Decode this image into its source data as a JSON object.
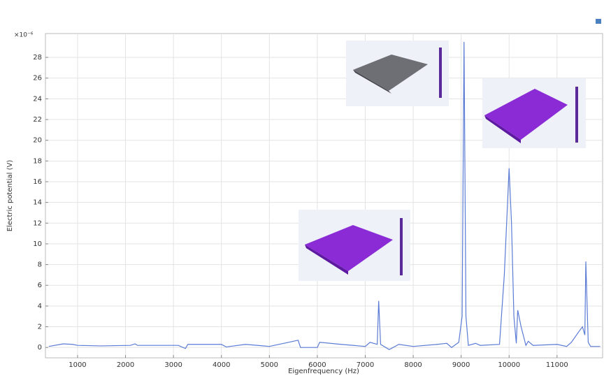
{
  "chart_data": {
    "type": "line",
    "y_multiplier": "×10⁻⁶",
    "xlabel": "Eigenfrequency (Hz)",
    "ylabel": "Electric potential (V)",
    "xlim": [
      330,
      11950
    ],
    "ylim": [
      -1,
      30.3
    ],
    "xticks": [
      1000,
      2000,
      3000,
      4000,
      5000,
      6000,
      7000,
      8000,
      9000,
      10000,
      11000
    ],
    "yticks": [
      0,
      2,
      4,
      6,
      8,
      10,
      12,
      14,
      16,
      18,
      20,
      22,
      24,
      26,
      28
    ],
    "grid": true,
    "series": [
      {
        "color": "#5b7bd5",
        "x": [
          400,
          700,
          900,
          1000,
          1500,
          2100,
          2200,
          2250,
          3100,
          3250,
          3300,
          4000,
          4100,
          4500,
          5000,
          5500,
          5600,
          5650,
          6000,
          6050,
          6500,
          7000,
          7100,
          7250,
          7280,
          7320,
          7500,
          7700,
          8000,
          8500,
          8700,
          8800,
          8950,
          9020,
          9060,
          9100,
          9150,
          9300,
          9400,
          9800,
          9900,
          10000,
          10050,
          10100,
          10150,
          10180,
          10250,
          10350,
          10400,
          10500,
          11000,
          11200,
          11300,
          11450,
          11530,
          11580,
          11600,
          11650,
          11700,
          11900
        ],
        "values": [
          0.1,
          0.35,
          0.3,
          0.2,
          0.15,
          0.2,
          0.35,
          0.2,
          0.2,
          -0.1,
          0.3,
          0.3,
          0.05,
          0.3,
          0.1,
          0.6,
          0.7,
          0,
          0,
          0.5,
          0.3,
          0.1,
          0.5,
          0.3,
          4.5,
          0.3,
          -0.2,
          0.3,
          0.1,
          0.3,
          0.4,
          0,
          0.5,
          3,
          29.5,
          3,
          0.2,
          0.4,
          0.2,
          0.3,
          7,
          17.3,
          12,
          3,
          0.4,
          3.6,
          2,
          0.2,
          0.6,
          0.2,
          0.3,
          0.1,
          0.5,
          1.5,
          2,
          1.2,
          8.3,
          0.5,
          0.1,
          0.1
        ]
      }
    ]
  }
}
